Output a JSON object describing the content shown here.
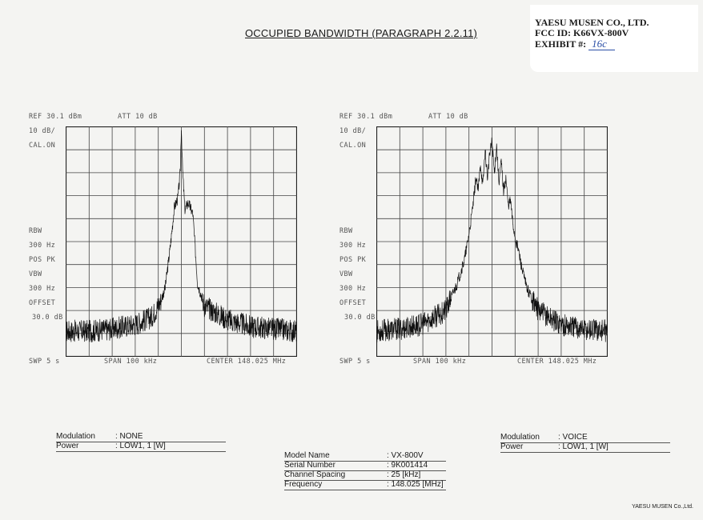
{
  "page_title": "OCCUPIED BANDWIDTH (PARAGRAPH 2.2.11)",
  "company_label": {
    "line1": "YAESU MUSEN CO., LTD.",
    "line2": "FCC ID: K66VX-800V",
    "exhibit_prefix": "EXHIBIT #:",
    "exhibit_value": "16c"
  },
  "analyzer_left": {
    "ref": "REF  30.1 dBm",
    "att": "ATT 10 dB",
    "scale": "10 dB/",
    "cal": "CAL.ON",
    "rbw": "RBW",
    "rbw_val": "300 Hz",
    "det": "POS PK",
    "vbw": "VBW",
    "vbw_val": "300 Hz",
    "offset": "OFFSET",
    "offset_val": "30.0 dB",
    "swp": "SWP 5 s",
    "span": "SPAN 100 kHz",
    "center": "CENTER 148.025 MHz"
  },
  "analyzer_right": {
    "ref": "REF  30.1 dBm",
    "att": "ATT 10 dB",
    "scale": "10 dB/",
    "cal": "CAL.ON",
    "rbw": "RBW",
    "rbw_val": "300 Hz",
    "det": "POS PK",
    "vbw": "VBW",
    "vbw_val": "300 Hz",
    "offset": "OFFSET",
    "offset_val": "30.0 dB",
    "swp": "SWP 5 s",
    "span": "SPAN 100 kHz",
    "center": "CENTER 148.025 MHz"
  },
  "chart_data": [
    {
      "type": "line",
      "title": "",
      "xlabel": "",
      "ylabel": "",
      "xlim": [
        147.975,
        148.075
      ],
      "ylim": [
        -70,
        30
      ],
      "grid": true,
      "x_divisions": 10,
      "y_divisions": 10,
      "series": [
        {
          "x": [
            147.975,
            147.985,
            147.995,
            148.005,
            148.012,
            148.016,
            148.018,
            148.02,
            148.022,
            148.0235,
            148.0245,
            148.025,
            148.0255,
            148.0265,
            148.028,
            148.03,
            148.032,
            148.035,
            148.045,
            148.055,
            148.065,
            148.075
          ],
          "values": [
            -59,
            -59,
            -58,
            -56,
            -53,
            -46,
            -40,
            -24,
            -5,
            -1,
            10,
            30,
            12,
            -6,
            -3,
            -8,
            -38,
            -48,
            -54,
            -57,
            -58,
            -59
          ]
        }
      ]
    },
    {
      "type": "line",
      "title": "",
      "xlabel": "",
      "ylabel": "",
      "xlim": [
        147.975,
        148.075
      ],
      "ylim": [
        -70,
        30
      ],
      "grid": true,
      "x_divisions": 10,
      "y_divisions": 10,
      "series": [
        {
          "x": [
            147.975,
            147.985,
            147.995,
            148.005,
            148.01,
            148.013,
            148.0145,
            148.016,
            148.017,
            148.018,
            148.019,
            148.02,
            148.021,
            148.022,
            148.023,
            148.024,
            148.025,
            148.026,
            148.027,
            148.028,
            148.029,
            148.03,
            148.031,
            148.032,
            148.033,
            148.034,
            148.035,
            148.0365,
            148.038,
            148.04,
            148.045,
            148.055,
            148.065,
            148.075
          ],
          "values": [
            -59,
            -58,
            -56,
            -50,
            -38,
            -28,
            -20,
            -10,
            -2,
            8,
            2,
            14,
            4,
            20,
            8,
            18,
            24,
            10,
            22,
            6,
            15,
            2,
            8,
            -4,
            -2,
            -12,
            -18,
            -24,
            -32,
            -40,
            -50,
            -56,
            -58,
            -59
          ]
        }
      ]
    }
  ],
  "left_settings": {
    "modulation_label": "Modulation",
    "modulation_value": ": NONE",
    "power_label": "Power",
    "power_value": ": LOW1, 1 [W]"
  },
  "right_settings": {
    "modulation_label": "Modulation",
    "modulation_value": ": VOICE",
    "power_label": "Power",
    "power_value": ": LOW1, 1 [W]"
  },
  "model_info": {
    "model_name_label": "Model Name",
    "model_name_value": ": VX-800V",
    "serial_label": "Serial Number",
    "serial_value": ": 9K001414",
    "channel_label": "Channel Spacing",
    "channel_value": ": 25 [kHz]",
    "frequency_label": "Frequency",
    "frequency_value": ": 148.025 [MHz]"
  },
  "footer": "YAESU MUSEN Co.,Ltd."
}
